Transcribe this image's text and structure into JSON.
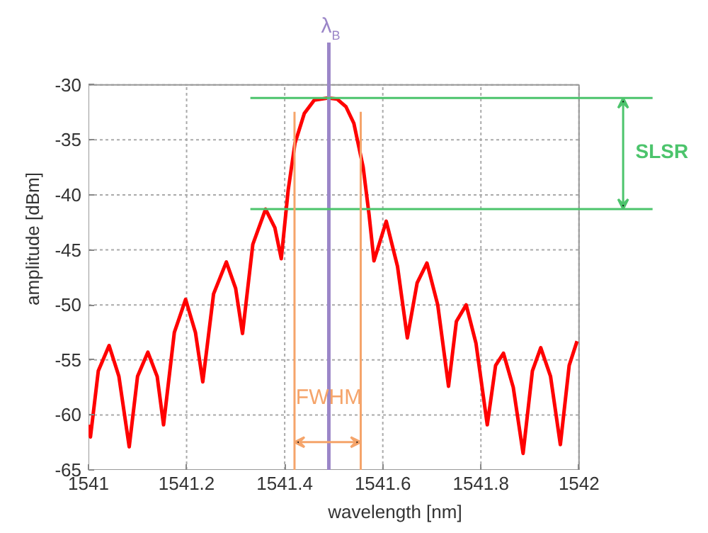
{
  "chart_data": {
    "type": "line",
    "xlabel": "wavelength [nm]",
    "ylabel": "amplitude [dBm]",
    "x": [
      1541.0,
      1541.004,
      1541.02,
      1541.042,
      1541.062,
      1541.083,
      1541.1,
      1541.121,
      1541.14,
      1541.153,
      1541.175,
      1541.198,
      1541.218,
      1541.233,
      1541.255,
      1541.281,
      1541.3,
      1541.314,
      1541.335,
      1541.361,
      1541.38,
      1541.393,
      1541.407,
      1541.421,
      1541.44,
      1541.46,
      1541.488,
      1541.507,
      1541.525,
      1541.541,
      1541.56,
      1541.572,
      1541.582,
      1541.607,
      1541.63,
      1541.65,
      1541.67,
      1541.69,
      1541.712,
      1541.734,
      1541.75,
      1541.77,
      1541.79,
      1541.813,
      1541.83,
      1541.846,
      1541.866,
      1541.886,
      1541.905,
      1541.922,
      1541.942,
      1541.962,
      1541.98,
      1541.996
    ],
    "series": [
      {
        "color": "#ff0000",
        "values": [
          -60.9,
          -62.0,
          -56.0,
          -53.7,
          -56.5,
          -62.9,
          -56.5,
          -54.3,
          -56.5,
          -60.9,
          -52.5,
          -49.5,
          -52.5,
          -57.0,
          -49.0,
          -46.1,
          -48.5,
          -52.6,
          -44.5,
          -41.3,
          -43.0,
          -45.8,
          -39.6,
          -35.3,
          -32.6,
          -31.4,
          -31.2,
          -31.3,
          -32.0,
          -33.5,
          -37.5,
          -41.8,
          -46.0,
          -42.4,
          -46.5,
          -53.0,
          -48.0,
          -46.2,
          -50.0,
          -57.4,
          -51.5,
          -50.0,
          -53.5,
          -60.9,
          -55.5,
          -54.4,
          -57.5,
          -63.5,
          -56.0,
          -53.9,
          -56.5,
          -62.7,
          -55.5,
          -53.3
        ]
      }
    ],
    "xlim": [
      1541,
      1542
    ],
    "ylim": [
      -65,
      -30
    ],
    "xticks": [
      1541,
      1541.2,
      1541.4,
      1541.6,
      1541.8,
      1542
    ],
    "yticks": [
      -65,
      -60,
      -55,
      -50,
      -45,
      -40,
      -35,
      -30
    ],
    "grid": true,
    "line_style": "solid",
    "marker": "none",
    "ref_lines": [
      {
        "axis": "x",
        "value": 1541.49,
        "label": "λ$_{B}$",
        "color": "#9b86c8"
      },
      {
        "axis": "y",
        "value": -31.2,
        "color": "#4cc46c"
      },
      {
        "axis": "y",
        "value": -41.3,
        "color": "#4cc46c"
      },
      {
        "axis": "x",
        "value": 1541.42,
        "color": "#f5a46a"
      },
      {
        "axis": "x",
        "value": 1541.555,
        "color": "#f5a46a"
      }
    ],
    "annotations": [
      "SLSR",
      {
        "text": "FWHM",
        "x": 1541.49,
        "y": -59.5
      }
    ]
  }
}
